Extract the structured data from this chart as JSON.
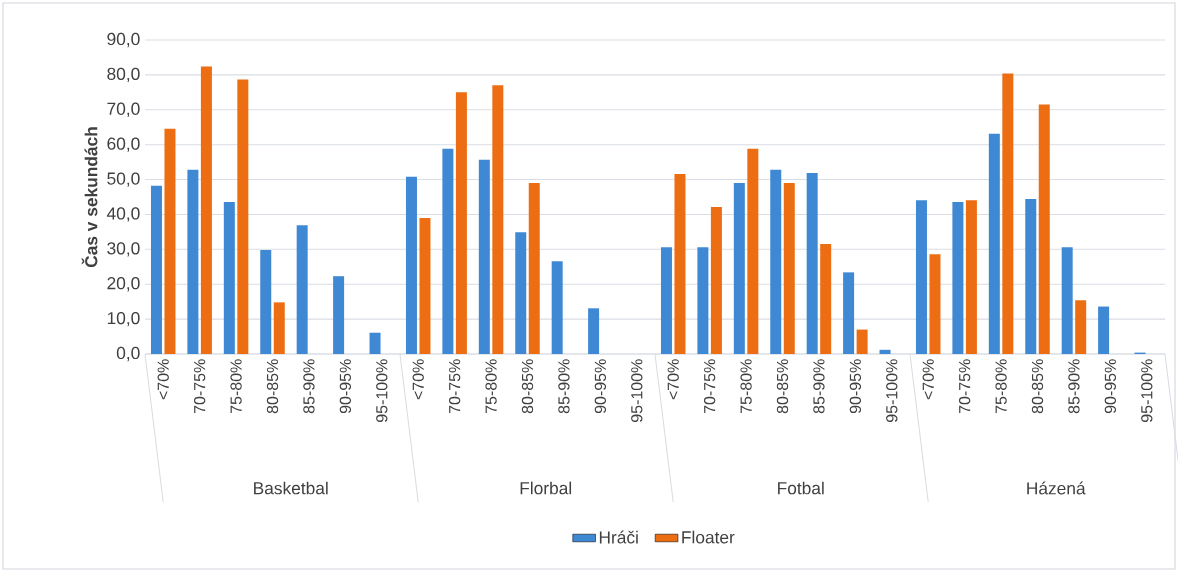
{
  "chart_data": {
    "type": "bar",
    "ylabel": "Čas v sekundách",
    "categories": [
      "<70%",
      "70-75%",
      "75-80%",
      "80-85%",
      "85-90%",
      "90-95%",
      "95-100%",
      "<70%",
      "70-75%",
      "75-80%",
      "80-85%",
      "85-90%",
      "90-95%",
      "95-100%",
      "<70%",
      "70-75%",
      "75-80%",
      "80-85%",
      "85-90%",
      "90-95%",
      "95-100%",
      "<70%",
      "70-75%",
      "75-80%",
      "80-85%",
      "85-90%",
      "90-95%",
      "95-100%"
    ],
    "annotations": [
      "Basketbal",
      "Florbal",
      "Fotbal",
      "Házená"
    ],
    "series": [
      {
        "name": "Hráči",
        "color": "#3f88d4",
        "values": [
          48.2,
          52.8,
          43.6,
          29.8,
          36.9,
          22.3,
          6.1,
          50.8,
          58.8,
          55.7,
          34.9,
          26.6,
          13.1,
          0,
          30.6,
          30.6,
          49.0,
          52.8,
          51.9,
          23.4,
          1.2,
          44.1,
          43.6,
          63.1,
          44.4,
          30.6,
          13.6,
          0.4
        ]
      },
      {
        "name": "Floater",
        "color": "#ec6d12",
        "values": [
          64.6,
          82.4,
          78.7,
          14.8,
          0,
          0,
          0,
          39.0,
          75.0,
          77.0,
          49.0,
          0,
          0,
          0,
          51.6,
          42.1,
          58.8,
          49.0,
          31.5,
          7.0,
          0,
          28.6,
          44.1,
          80.4,
          71.5,
          15.4,
          0,
          0
        ]
      }
    ],
    "ylim": [
      0,
      90
    ],
    "yticks": [
      {
        "value": 0,
        "label": "0,0"
      },
      {
        "value": 10,
        "label": "10,0"
      },
      {
        "value": 20,
        "label": "20,0"
      },
      {
        "value": 30,
        "label": "30,0"
      },
      {
        "value": 40,
        "label": "40,0"
      },
      {
        "value": 50,
        "label": "50,0"
      },
      {
        "value": 60,
        "label": "60,0"
      },
      {
        "value": 70,
        "label": "70,0"
      },
      {
        "value": 80,
        "label": "80,0"
      },
      {
        "value": 90,
        "label": "90,0"
      }
    ],
    "grid": "y",
    "legend": "bottom"
  }
}
